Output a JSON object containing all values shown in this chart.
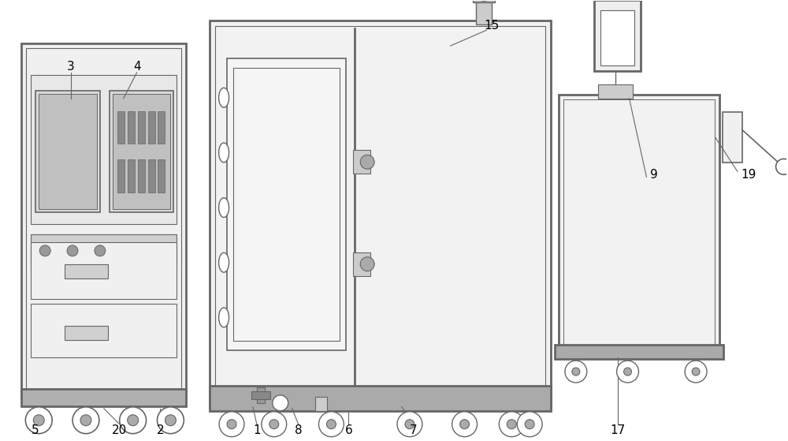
{
  "bg_color": "#ffffff",
  "line_color": "#666666",
  "line_width": 1.2,
  "lw_thick": 2.0,
  "figsize": [
    10.0,
    5.59
  ],
  "dpi": 100
}
